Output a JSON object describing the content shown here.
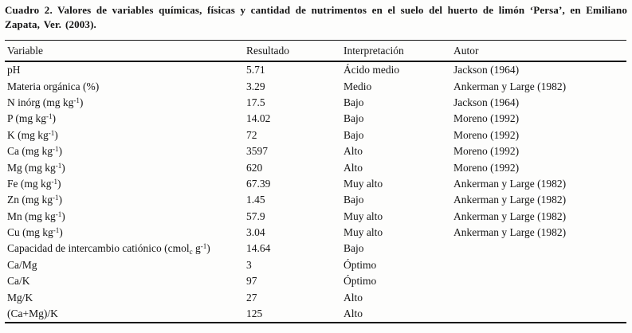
{
  "caption": {
    "text": "Cuadro 2. Valores de variables químicas, físicas y cantidad de nutrimentos  en el suelo del huerto de limón ‘Persa’, en Emiliano Zapata,  Ver. (2003)."
  },
  "table": {
    "headers": [
      "Variable",
      "Resultado",
      "Interpretación",
      "Autor"
    ],
    "header_keys": [
      "variable",
      "resultado",
      "interpretacion",
      "autor"
    ],
    "rows": [
      {
        "variable": [
          {
            "text": "pH"
          }
        ],
        "resultado": "5.71",
        "interpretacion": "Ácido medio",
        "autor": "Jackson (1964)"
      },
      {
        "variable": [
          {
            "text": "Materia orgánica (%)"
          }
        ],
        "resultado": "3.29",
        "interpretacion": "Medio",
        "autor": "Ankerman y Large (1982)"
      },
      {
        "variable": [
          {
            "text": "N inórg (mg kg"
          },
          {
            "sup": "-1"
          },
          {
            "text": ")"
          }
        ],
        "resultado": "17.5",
        "interpretacion": "Bajo",
        "autor": "Jackson (1964)"
      },
      {
        "variable": [
          {
            "text": "P (mg kg"
          },
          {
            "sup": "-1"
          },
          {
            "text": ")"
          }
        ],
        "resultado": "14.02",
        "interpretacion": "Bajo",
        "autor": "Moreno (1992)"
      },
      {
        "variable": [
          {
            "text": "K (mg kg"
          },
          {
            "sup": "-1"
          },
          {
            "text": ")"
          }
        ],
        "resultado": "72",
        "interpretacion": "Bajo",
        "autor": "Moreno (1992)"
      },
      {
        "variable": [
          {
            "text": "Ca (mg kg"
          },
          {
            "sup": "-1"
          },
          {
            "text": ")"
          }
        ],
        "resultado": "3597",
        "interpretacion": "Alto",
        "autor": "Moreno (1992)"
      },
      {
        "variable": [
          {
            "text": "Mg (mg kg"
          },
          {
            "sup": "-1"
          },
          {
            "text": ")"
          }
        ],
        "resultado": "620",
        "interpretacion": "Alto",
        "autor": "Moreno (1992)"
      },
      {
        "variable": [
          {
            "text": "Fe (mg kg"
          },
          {
            "sup": "-1"
          },
          {
            "text": ")"
          }
        ],
        "resultado": "67.39",
        "interpretacion": "Muy alto",
        "autor": "Ankerman y Large (1982)"
      },
      {
        "variable": [
          {
            "text": "Zn (mg kg"
          },
          {
            "sup": "-1"
          },
          {
            "text": ")"
          }
        ],
        "resultado": "1.45",
        "interpretacion": "Bajo",
        "autor": "Ankerman y Large (1982)"
      },
      {
        "variable": [
          {
            "text": "Mn (mg kg"
          },
          {
            "sup": "-1"
          },
          {
            "text": ")"
          }
        ],
        "resultado": "57.9",
        "interpretacion": "Muy alto",
        "autor": "Ankerman y Large (1982)"
      },
      {
        "variable": [
          {
            "text": "Cu (mg kg"
          },
          {
            "sup": "-1"
          },
          {
            "text": ")"
          }
        ],
        "resultado": "3.04",
        "interpretacion": "Muy alto",
        "autor": "Ankerman y Large (1982)"
      },
      {
        "variable": [
          {
            "text": "Capacidad de intercambio catiónico (cmol"
          },
          {
            "sub": "c"
          },
          {
            "text": " g"
          },
          {
            "sup": "-1"
          },
          {
            "text": ")"
          }
        ],
        "resultado": "14.64",
        "interpretacion": "Bajo",
        "autor": ""
      },
      {
        "variable": [
          {
            "text": "Ca/Mg"
          }
        ],
        "resultado": "3",
        "interpretacion": "Óptimo",
        "autor": ""
      },
      {
        "variable": [
          {
            "text": "Ca/K"
          }
        ],
        "resultado": "97",
        "interpretacion": "Óptimo",
        "autor": ""
      },
      {
        "variable": [
          {
            "text": "Mg/K"
          }
        ],
        "resultado": "27",
        "interpretacion": "Alto",
        "autor": ""
      },
      {
        "variable": [
          {
            "text": "(Ca+Mg)/K"
          }
        ],
        "resultado": "125",
        "interpretacion": "Alto",
        "autor": ""
      }
    ]
  }
}
